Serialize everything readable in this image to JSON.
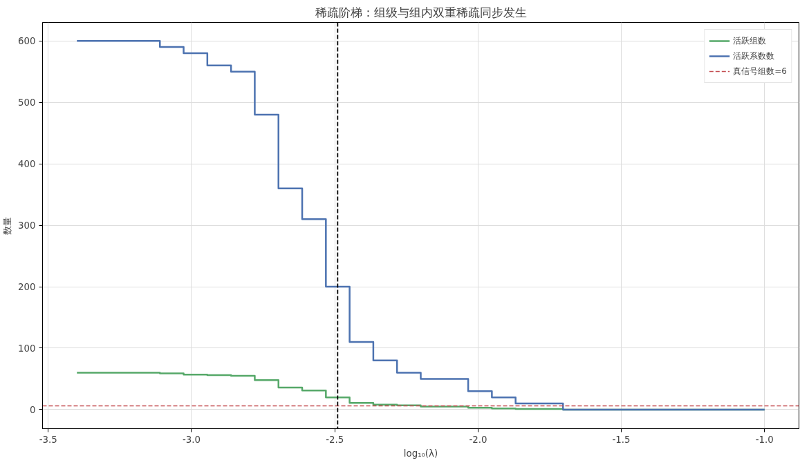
{
  "chart_data": {
    "type": "step",
    "title": "稀疏阶梯：组级与组内双重稀疏同步发生",
    "xlabel": "log₁₀(λ)",
    "ylabel": "数量",
    "x": [
      -3.4,
      -3.31724,
      -3.23448,
      -3.15172,
      -3.06897,
      -2.98621,
      -2.90345,
      -2.82069,
      -2.73793,
      -2.65517,
      -2.57241,
      -2.48966,
      -2.4069,
      -2.32414,
      -2.24138,
      -2.15862,
      -2.07586,
      -1.9931,
      -1.91034,
      -1.82759,
      -1.74483,
      -1.66207,
      -1.57931,
      -1.49655,
      -1.41379,
      -1.33103,
      -1.24828,
      -1.16552,
      -1.08276,
      -1.0
    ],
    "series": [
      {
        "name": "活跃组数",
        "color": "#55a868",
        "values": [
          60,
          60,
          60,
          60,
          59,
          57,
          56,
          55,
          48,
          36,
          31,
          20,
          11,
          8,
          7,
          5,
          5,
          3,
          2,
          1,
          1,
          0,
          0,
          0,
          0,
          0,
          0,
          0,
          0,
          0
        ]
      },
      {
        "name": "活跃系数数",
        "color": "#4c72b0",
        "values": [
          600,
          600,
          600,
          600,
          590,
          580,
          560,
          550,
          480,
          360,
          310,
          200,
          110,
          80,
          60,
          50,
          50,
          30,
          20,
          10,
          10,
          0,
          0,
          0,
          0,
          0,
          0,
          0,
          0,
          0
        ]
      }
    ],
    "ref_lines": [
      {
        "axis": "y",
        "value": 6,
        "label": "真信号组数=6",
        "color": "#c44e52",
        "line_style": "dashed"
      },
      {
        "axis": "x",
        "value": -2.49,
        "color": "#000000",
        "line_style": "dashed"
      }
    ],
    "xlim": [
      -3.52,
      -0.88
    ],
    "xticks": [
      -3.5,
      {
        "value": -3,
        "label": "-3.0"
      },
      -2.5,
      {
        "value": -2,
        "label": "-2.0"
      },
      -1.5,
      {
        "value": -1,
        "label": "-1.0"
      }
    ],
    "ylim": [
      -31,
      630
    ],
    "yticks": [
      0,
      100,
      200,
      300,
      400,
      500,
      600
    ],
    "grid": true,
    "legend": "top right"
  }
}
